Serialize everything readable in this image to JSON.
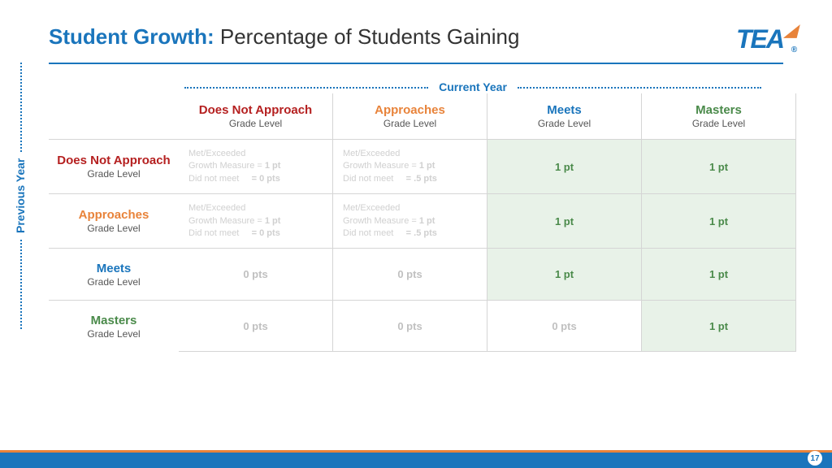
{
  "title_bold": "Student Growth:",
  "title_rest": " Percentage of Students Gaining",
  "logo_text": "TEA",
  "current_year_label": "Current Year",
  "previous_year_label": "Previous Year",
  "page_number": "17",
  "col_headers": [
    {
      "title": "Does Not Approach",
      "sub": "Grade Level",
      "color": "c-red"
    },
    {
      "title": "Approaches",
      "sub": "Grade Level",
      "color": "c-orange"
    },
    {
      "title": "Meets",
      "sub": "Grade Level",
      "color": "c-blue"
    },
    {
      "title": "Masters",
      "sub": "Grade Level",
      "color": "c-green"
    }
  ],
  "row_headers": [
    {
      "title": "Does Not Approach",
      "sub": "Grade Level",
      "color": "c-red"
    },
    {
      "title": "Approaches",
      "sub": "Grade Level",
      "color": "c-orange"
    },
    {
      "title": "Meets",
      "sub": "Grade Level",
      "color": "c-blue"
    },
    {
      "title": "Masters",
      "sub": "Grade Level",
      "color": "c-green"
    }
  ],
  "faded_line1": "Met/Exceeded",
  "faded_line2a": "Growth Measure = ",
  "faded_line2b": "1 pt",
  "faded_line3a": "Did not meet",
  "faded_0pts": "= 0 pts",
  "faded_5pts": "= .5 pts",
  "pt_1": "1 pt",
  "pts_0": "0 pts"
}
